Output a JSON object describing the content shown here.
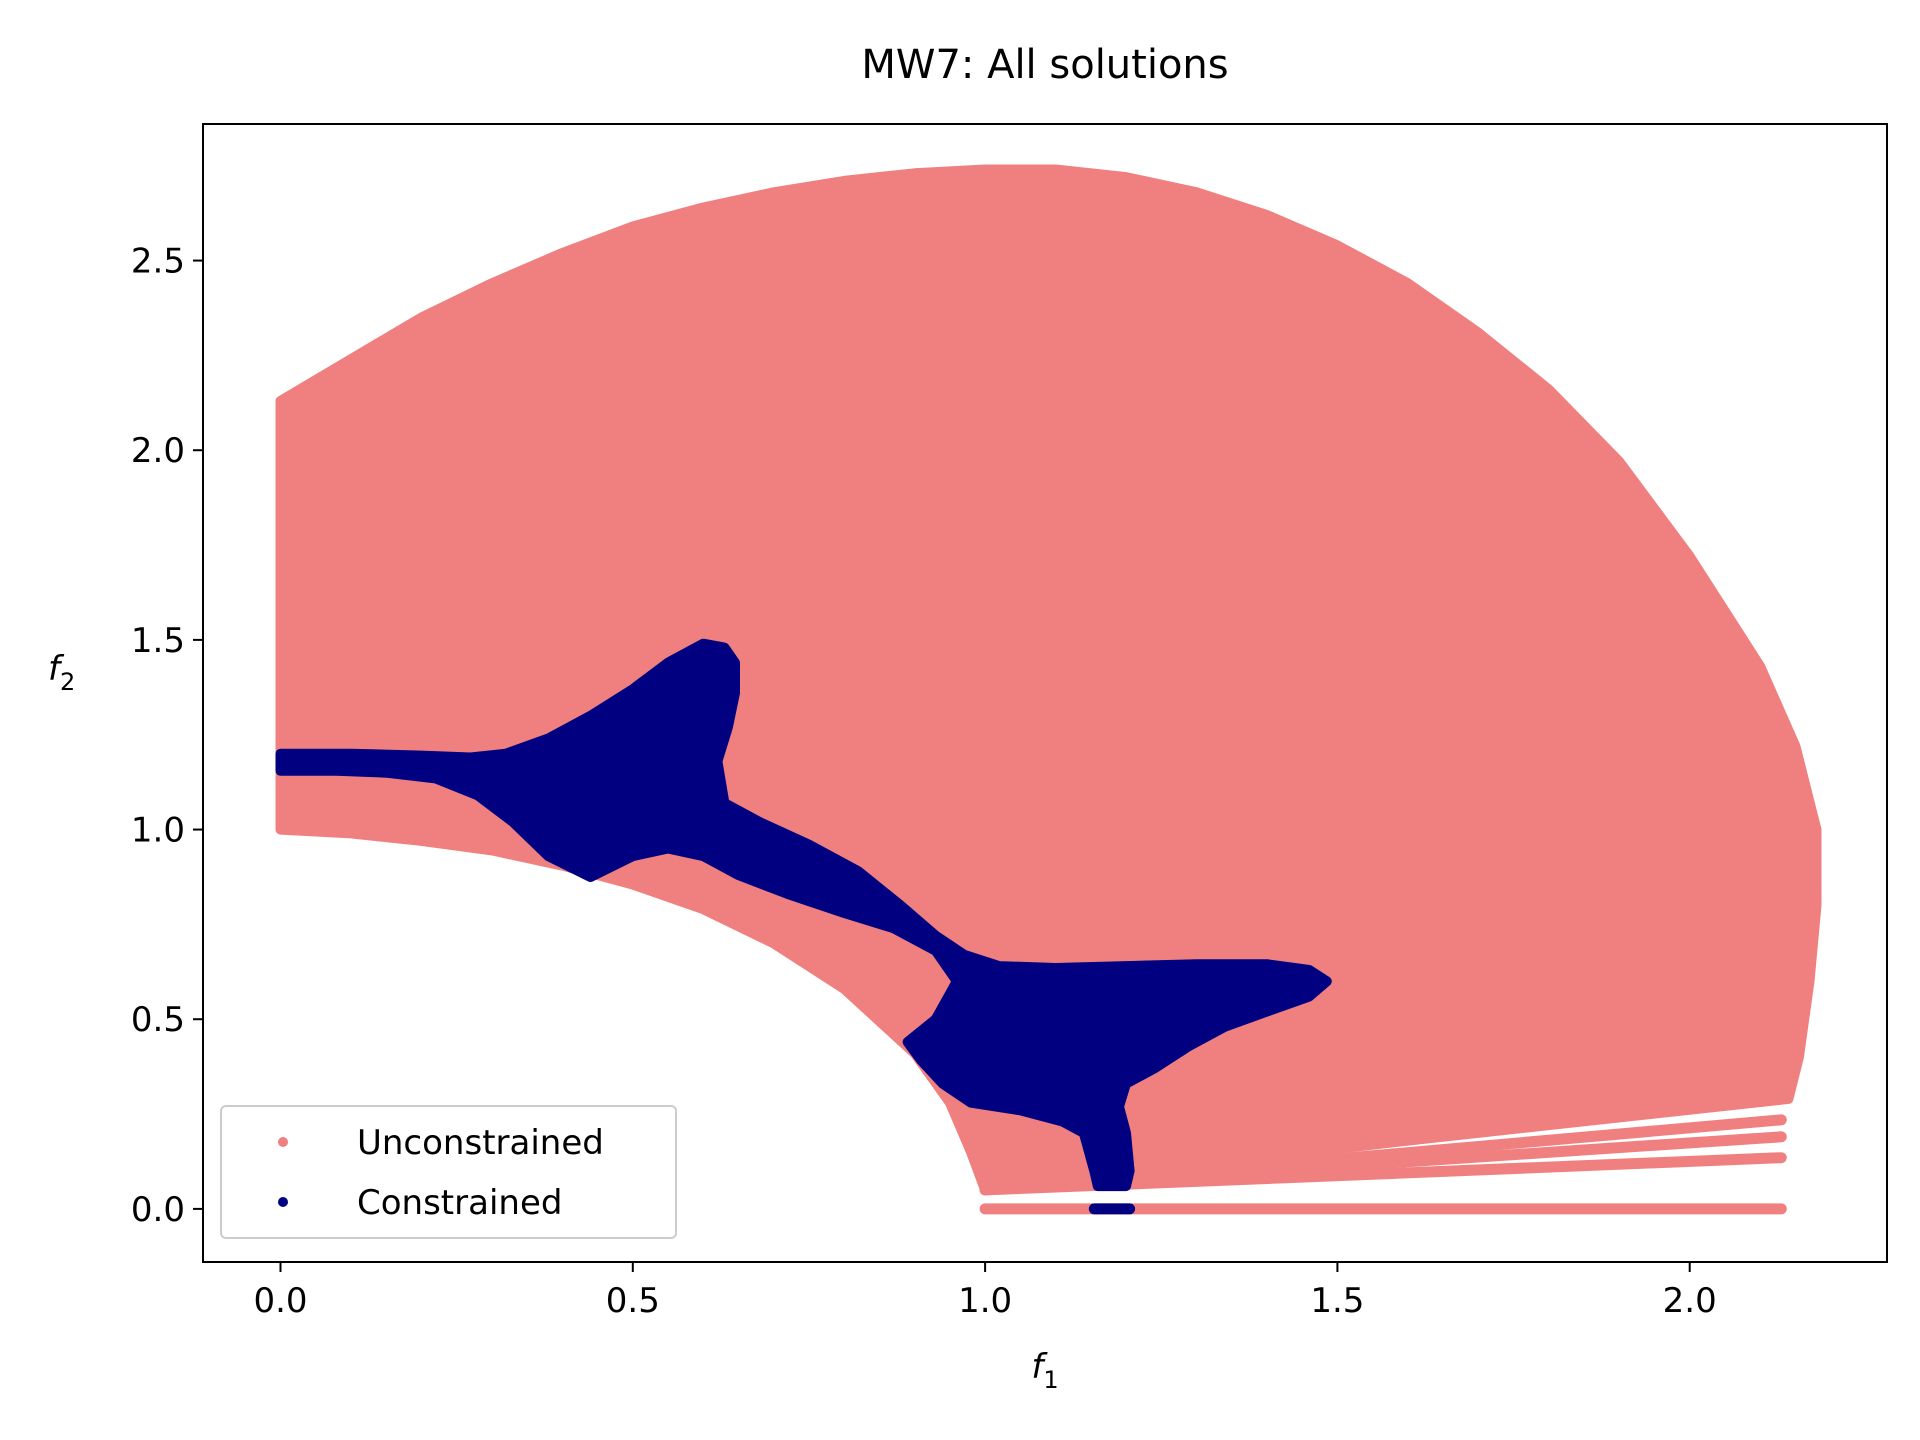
{
  "chart_data": {
    "type": "scatter",
    "title": "MW7: All solutions",
    "xlabel": "f",
    "xlabel_sub": "1",
    "ylabel": "f",
    "ylabel_sub": "2",
    "xlim": [
      -0.11,
      2.28
    ],
    "ylim": [
      -0.14,
      2.86
    ],
    "x_ticks": [
      0.0,
      0.5,
      1.0,
      1.5,
      2.0
    ],
    "x_tick_labels": [
      "0.0",
      "0.5",
      "1.0",
      "1.5",
      "2.0"
    ],
    "y_ticks": [
      0.0,
      0.5,
      1.0,
      1.5,
      2.0,
      2.5
    ],
    "y_tick_labels": [
      "0.0",
      "0.5",
      "1.0",
      "1.5",
      "2.0",
      "2.5"
    ],
    "grid": false,
    "legend_position": "lower-left",
    "series": [
      {
        "name": "Unconstrained",
        "color": "#f08080",
        "regions": [
          {
            "id": "main-region",
            "outline": [
              [
                0.0,
                2.13
              ],
              [
                0.1,
                2.24
              ],
              [
                0.2,
                2.35
              ],
              [
                0.3,
                2.44
              ],
              [
                0.4,
                2.52
              ],
              [
                0.5,
                2.59
              ],
              [
                0.6,
                2.64
              ],
              [
                0.7,
                2.68
              ],
              [
                0.8,
                2.71
              ],
              [
                0.9,
                2.73
              ],
              [
                1.0,
                2.74
              ],
              [
                1.1,
                2.74
              ],
              [
                1.2,
                2.72
              ],
              [
                1.3,
                2.68
              ],
              [
                1.4,
                2.62
              ],
              [
                1.5,
                2.54
              ],
              [
                1.6,
                2.44
              ],
              [
                1.7,
                2.31
              ],
              [
                1.8,
                2.16
              ],
              [
                1.9,
                1.97
              ],
              [
                2.0,
                1.72
              ],
              [
                2.1,
                1.43
              ],
              [
                2.15,
                1.22
              ],
              [
                2.18,
                1.0
              ],
              [
                2.18,
                0.8
              ],
              [
                2.17,
                0.6
              ],
              [
                2.155,
                0.4
              ],
              [
                2.14,
                0.29
              ],
              [
                1.6,
                0.18
              ],
              [
                1.0,
                0.05
              ],
              [
                0.98,
                0.15
              ],
              [
                0.95,
                0.28
              ],
              [
                0.9,
                0.41
              ],
              [
                0.8,
                0.58
              ],
              [
                0.7,
                0.7
              ],
              [
                0.6,
                0.79
              ],
              [
                0.5,
                0.855
              ],
              [
                0.4,
                0.905
              ],
              [
                0.3,
                0.945
              ],
              [
                0.2,
                0.97
              ],
              [
                0.1,
                0.99
              ],
              [
                0.0,
                1.0
              ]
            ]
          }
        ],
        "bands": [
          {
            "x": [
              1.0,
              2.13
            ],
            "y": [
              0.0,
              0.0
            ]
          },
          {
            "x": [
              1.0,
              2.13
            ],
            "y": [
              0.05,
              0.135
            ]
          },
          {
            "x": [
              1.0,
              2.13
            ],
            "y": [
              0.05,
              0.19
            ]
          },
          {
            "x": [
              1.0,
              2.13
            ],
            "y": [
              0.05,
              0.235
            ]
          }
        ]
      },
      {
        "name": "Constrained",
        "color": "#000080",
        "regions": [
          {
            "id": "feasible-region",
            "outline": [
              [
                0.0,
                1.2
              ],
              [
                0.1,
                1.2
              ],
              [
                0.2,
                1.195
              ],
              [
                0.27,
                1.19
              ],
              [
                0.32,
                1.2
              ],
              [
                0.38,
                1.24
              ],
              [
                0.44,
                1.3
              ],
              [
                0.5,
                1.37
              ],
              [
                0.55,
                1.44
              ],
              [
                0.6,
                1.49
              ],
              [
                0.63,
                1.48
              ],
              [
                0.645,
                1.44
              ],
              [
                0.645,
                1.36
              ],
              [
                0.635,
                1.27
              ],
              [
                0.62,
                1.18
              ],
              [
                0.63,
                1.07
              ],
              [
                0.68,
                1.02
              ],
              [
                0.75,
                0.96
              ],
              [
                0.82,
                0.89
              ],
              [
                0.88,
                0.8
              ],
              [
                0.93,
                0.72
              ],
              [
                0.97,
                0.67
              ],
              [
                1.02,
                0.64
              ],
              [
                1.1,
                0.635
              ],
              [
                1.2,
                0.64
              ],
              [
                1.3,
                0.645
              ],
              [
                1.4,
                0.645
              ],
              [
                1.46,
                0.63
              ],
              [
                1.485,
                0.6
              ],
              [
                1.46,
                0.56
              ],
              [
                1.4,
                0.52
              ],
              [
                1.34,
                0.48
              ],
              [
                1.29,
                0.43
              ],
              [
                1.24,
                0.37
              ],
              [
                1.2,
                0.33
              ],
              [
                1.19,
                0.27
              ],
              [
                1.2,
                0.2
              ],
              [
                1.205,
                0.1
              ],
              [
                1.2,
                0.06
              ],
              [
                1.16,
                0.06
              ],
              [
                1.155,
                0.1
              ],
              [
                1.14,
                0.2
              ],
              [
                1.11,
                0.23
              ],
              [
                1.05,
                0.26
              ],
              [
                0.98,
                0.28
              ],
              [
                0.94,
                0.33
              ],
              [
                0.91,
                0.39
              ],
              [
                0.89,
                0.44
              ],
              [
                0.93,
                0.5
              ],
              [
                0.96,
                0.6
              ],
              [
                0.93,
                0.68
              ],
              [
                0.87,
                0.74
              ],
              [
                0.8,
                0.78
              ],
              [
                0.72,
                0.83
              ],
              [
                0.65,
                0.88
              ],
              [
                0.6,
                0.93
              ],
              [
                0.55,
                0.95
              ],
              [
                0.5,
                0.93
              ],
              [
                0.44,
                0.875
              ],
              [
                0.38,
                0.93
              ],
              [
                0.33,
                1.02
              ],
              [
                0.28,
                1.09
              ],
              [
                0.22,
                1.135
              ],
              [
                0.15,
                1.15
              ],
              [
                0.08,
                1.155
              ],
              [
                0.0,
                1.155
              ]
            ]
          }
        ],
        "bands": [
          {
            "x": [
              1.155,
              1.205
            ],
            "y": [
              0.0,
              0.0
            ]
          }
        ]
      }
    ]
  }
}
